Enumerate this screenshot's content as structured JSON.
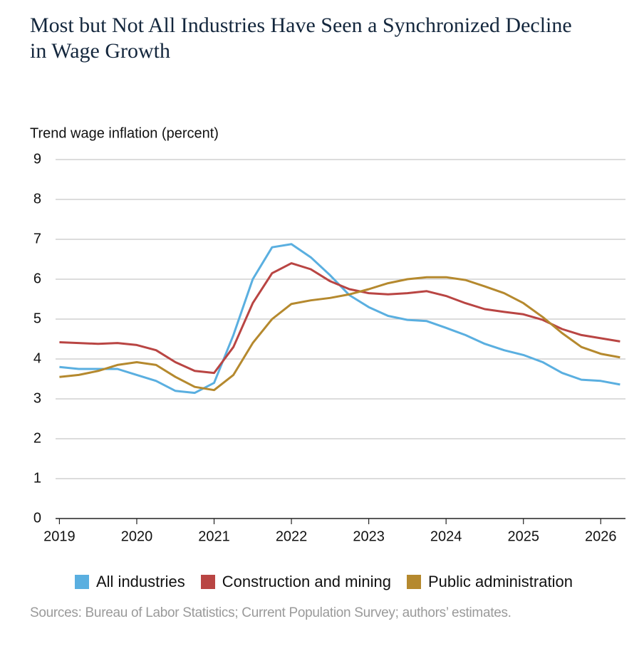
{
  "chart_data": {
    "type": "line",
    "title": "Most but Not All Industries Have Seen a Synchronized Decline in Wage Growth",
    "y_label": "Trend wage inflation (percent)",
    "source": "Sources: Bureau of Labor Statistics; Current Population Survey; authors’ estimates.",
    "x": [
      2019,
      2019.25,
      2019.5,
      2019.75,
      2020,
      2020.25,
      2020.5,
      2020.75,
      2021,
      2021.25,
      2021.5,
      2021.75,
      2022,
      2022.25,
      2022.5,
      2022.75,
      2023,
      2023.25,
      2023.5,
      2023.75,
      2024,
      2024.25,
      2024.5,
      2024.75,
      2025,
      2025.25,
      2025.5,
      2025.75,
      2026,
      2026.25
    ],
    "series": [
      {
        "name": "All industries",
        "color": "#5aafe0",
        "values": [
          3.8,
          3.75,
          3.75,
          3.75,
          3.6,
          3.45,
          3.2,
          3.15,
          3.4,
          4.6,
          6.0,
          6.8,
          6.88,
          6.55,
          6.1,
          5.6,
          5.3,
          5.08,
          4.98,
          4.95,
          4.78,
          4.6,
          4.38,
          4.22,
          4.1,
          3.92,
          3.65,
          3.48,
          3.45,
          3.36
        ]
      },
      {
        "name": "Construction and mining",
        "color": "#b94543",
        "values": [
          4.42,
          4.4,
          4.38,
          4.4,
          4.35,
          4.22,
          3.92,
          3.7,
          3.65,
          4.3,
          5.4,
          6.15,
          6.4,
          6.25,
          5.95,
          5.75,
          5.65,
          5.62,
          5.65,
          5.7,
          5.58,
          5.4,
          5.25,
          5.18,
          5.12,
          4.98,
          4.75,
          4.6,
          4.52,
          4.44
        ]
      },
      {
        "name": "Public administration",
        "color": "#b5892e",
        "values": [
          3.55,
          3.6,
          3.7,
          3.85,
          3.92,
          3.85,
          3.55,
          3.3,
          3.22,
          3.6,
          4.4,
          5.0,
          5.38,
          5.47,
          5.53,
          5.62,
          5.75,
          5.9,
          6.0,
          6.05,
          6.05,
          5.98,
          5.82,
          5.65,
          5.4,
          5.05,
          4.65,
          4.3,
          4.13,
          4.04
        ]
      }
    ],
    "xlim": [
      2018.95,
      2026.32
    ],
    "xticks": [
      2019,
      2020,
      2021,
      2022,
      2023,
      2024,
      2025,
      2026
    ],
    "ylim": [
      0,
      9
    ],
    "yticks": [
      0,
      1,
      2,
      3,
      4,
      5,
      6,
      7,
      8,
      9
    ],
    "grid": true
  }
}
